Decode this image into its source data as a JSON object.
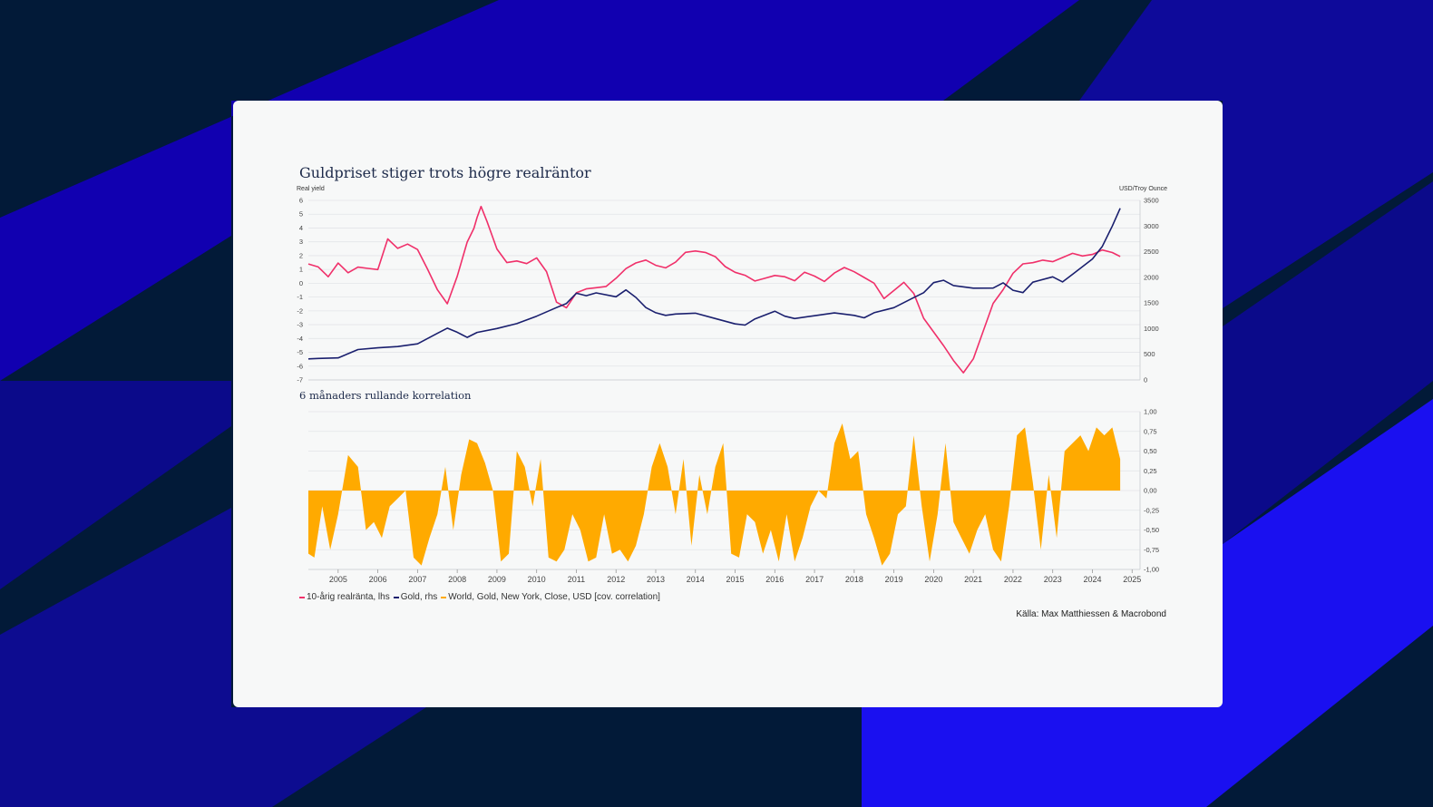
{
  "colors": {
    "background": "#021a38",
    "stripe_blue": "#1100b0",
    "stripe_bright": "#1a10f0",
    "card": "#f7f8f8",
    "real_yield": "#f0306a",
    "gold": "#1a1f6e",
    "correlation": "#ffaa00"
  },
  "chart_data": [
    {
      "type": "line",
      "title": "Guldpriset stiger trots högre realräntor",
      "ylabel_left": "Real yield",
      "ylabel_right": "USD/Troy Ounce",
      "ylim_left": [
        -7,
        6
      ],
      "ylim_right": [
        0,
        3500
      ],
      "left_ticks": [
        "6",
        "5",
        "4",
        "3",
        "2",
        "1",
        "0",
        "-1",
        "-2",
        "-3",
        "-4",
        "-5",
        "-6",
        "-7"
      ],
      "right_ticks": [
        "3500",
        "3000",
        "2500",
        "2000",
        "1500",
        "1000",
        "500",
        "0"
      ],
      "x_range": [
        2004.75,
        2025.7
      ],
      "grid": true,
      "series": [
        {
          "name": "10-årig realränta, lhs",
          "axis": "left",
          "x": [
            2004.75,
            2005.0,
            2005.25,
            2005.5,
            2005.75,
            2006.0,
            2006.25,
            2006.5,
            2006.75,
            2007.0,
            2007.25,
            2007.5,
            2007.75,
            2008.0,
            2008.25,
            2008.5,
            2008.75,
            2008.92,
            2009.0,
            2009.1,
            2009.25,
            2009.5,
            2009.75,
            2010.0,
            2010.25,
            2010.5,
            2010.75,
            2011.0,
            2011.25,
            2011.5,
            2011.75,
            2012.0,
            2012.25,
            2012.5,
            2012.75,
            2013.0,
            2013.25,
            2013.5,
            2013.75,
            2014.0,
            2014.25,
            2014.5,
            2014.75,
            2015.0,
            2015.25,
            2015.5,
            2015.75,
            2016.0,
            2016.25,
            2016.5,
            2016.75,
            2017.0,
            2017.25,
            2017.5,
            2017.75,
            2018.0,
            2018.25,
            2018.5,
            2018.75,
            2019.0,
            2019.25,
            2019.5,
            2019.75,
            2020.0,
            2020.25,
            2020.5,
            2020.75,
            2021.0,
            2021.25,
            2021.5,
            2021.75,
            2022.0,
            2022.25,
            2022.5,
            2022.75,
            2023.0,
            2023.25,
            2023.5,
            2023.75,
            2024.0,
            2024.25,
            2024.5,
            2024.75,
            2025.0,
            2025.2
          ],
          "y": [
            1.4,
            1.2,
            0.5,
            1.5,
            0.8,
            1.2,
            1.1,
            1.0,
            3.2,
            2.5,
            2.8,
            2.4,
            1.0,
            -0.5,
            -1.5,
            0.5,
            3.0,
            4.0,
            4.8,
            5.6,
            4.5,
            2.5,
            1.5,
            1.6,
            1.4,
            1.8,
            0.8,
            -1.4,
            -1.8,
            -0.7,
            -0.4,
            -0.3,
            -0.2,
            0.4,
            1.1,
            1.5,
            1.7,
            1.3,
            1.1,
            1.5,
            2.2,
            2.3,
            2.2,
            1.9,
            1.2,
            0.8,
            0.6,
            0.2,
            0.4,
            0.6,
            0.5,
            0.2,
            0.8,
            0.5,
            0.1,
            0.7,
            1.1,
            0.8,
            0.4,
            0.0,
            -1.1,
            -0.5,
            0.1,
            -0.7,
            -2.5,
            -3.5,
            -4.5,
            -5.6,
            -6.5,
            -5.5,
            -3.5,
            -1.5,
            -0.5,
            0.7,
            1.4,
            1.5,
            1.7,
            1.6,
            1.9,
            2.2,
            2.0,
            2.1,
            2.4,
            2.2,
            1.9
          ]
        },
        {
          "name": "Gold, rhs",
          "axis": "right",
          "x": [
            2004.75,
            2005.0,
            2005.5,
            2006.0,
            2006.5,
            2007.0,
            2007.5,
            2008.0,
            2008.25,
            2008.5,
            2008.75,
            2009.0,
            2009.5,
            2010.0,
            2010.5,
            2011.0,
            2011.25,
            2011.5,
            2011.75,
            2012.0,
            2012.5,
            2012.75,
            2013.0,
            2013.25,
            2013.5,
            2013.75,
            2014.0,
            2014.5,
            2015.0,
            2015.5,
            2015.75,
            2016.0,
            2016.5,
            2016.75,
            2017.0,
            2017.5,
            2018.0,
            2018.5,
            2018.75,
            2019.0,
            2019.5,
            2020.0,
            2020.25,
            2020.5,
            2020.75,
            2021.0,
            2021.5,
            2022.0,
            2022.25,
            2022.5,
            2022.75,
            2023.0,
            2023.5,
            2023.75,
            2024.0,
            2024.5,
            2024.75,
            2025.0,
            2025.2
          ],
          "y": [
            420,
            430,
            440,
            600,
            630,
            650,
            700,
            900,
            1000,
            920,
            820,
            920,
            1000,
            1100,
            1250,
            1420,
            1500,
            1700,
            1650,
            1700,
            1620,
            1750,
            1600,
            1400,
            1300,
            1250,
            1280,
            1300,
            1200,
            1100,
            1080,
            1200,
            1350,
            1250,
            1200,
            1250,
            1300,
            1250,
            1200,
            1300,
            1400,
            1600,
            1700,
            1900,
            1950,
            1850,
            1800,
            1800,
            1900,
            1750,
            1700,
            1900,
            2000,
            1900,
            2050,
            2350,
            2600,
            3000,
            3350
          ]
        }
      ]
    },
    {
      "type": "area",
      "title": "6 månaders rullande korrelation",
      "series_name": "World, Gold, New York, Close, USD [cov. correlation]",
      "ylim": [
        -1.0,
        1.0
      ],
      "right_ticks": [
        "1,00",
        "0,75",
        "0,50",
        "0,25",
        "0,00",
        "-0,25",
        "-0,50",
        "-0,75",
        "-1,00"
      ],
      "x_range": [
        2004.75,
        2025.7
      ],
      "x_ticks": [
        "2005",
        "2006",
        "2007",
        "2008",
        "2009",
        "2010",
        "2011",
        "2012",
        "2013",
        "2014",
        "2015",
        "2016",
        "2017",
        "2018",
        "2019",
        "2020",
        "2021",
        "2022",
        "2023",
        "2024",
        "2025"
      ],
      "x": [
        2004.75,
        2004.9,
        2005.1,
        2005.3,
        2005.5,
        2005.75,
        2006.0,
        2006.2,
        2006.4,
        2006.6,
        2006.8,
        2007.0,
        2007.2,
        2007.4,
        2007.6,
        2007.8,
        2008.0,
        2008.2,
        2008.4,
        2008.6,
        2008.8,
        2009.0,
        2009.2,
        2009.4,
        2009.6,
        2009.8,
        2010.0,
        2010.2,
        2010.4,
        2010.6,
        2010.8,
        2011.0,
        2011.2,
        2011.4,
        2011.6,
        2011.8,
        2012.0,
        2012.2,
        2012.4,
        2012.6,
        2012.8,
        2013.0,
        2013.2,
        2013.4,
        2013.6,
        2013.8,
        2014.0,
        2014.2,
        2014.4,
        2014.6,
        2014.8,
        2015.0,
        2015.2,
        2015.4,
        2015.6,
        2015.8,
        2016.0,
        2016.2,
        2016.4,
        2016.6,
        2016.8,
        2017.0,
        2017.2,
        2017.4,
        2017.6,
        2017.8,
        2018.0,
        2018.2,
        2018.4,
        2018.6,
        2018.8,
        2019.0,
        2019.2,
        2019.4,
        2019.6,
        2019.8,
        2020.0,
        2020.2,
        2020.4,
        2020.6,
        2020.8,
        2021.0,
        2021.2,
        2021.4,
        2021.6,
        2021.8,
        2022.0,
        2022.2,
        2022.4,
        2022.6,
        2022.8,
        2023.0,
        2023.2,
        2023.4,
        2023.6,
        2023.8,
        2024.0,
        2024.2,
        2024.4,
        2024.6,
        2024.8,
        2025.0,
        2025.2
      ],
      "y": [
        -0.8,
        -0.85,
        -0.2,
        -0.75,
        -0.3,
        0.45,
        0.3,
        -0.5,
        -0.4,
        -0.6,
        -0.2,
        -0.1,
        0.0,
        -0.85,
        -0.95,
        -0.6,
        -0.3,
        0.3,
        -0.5,
        0.2,
        0.65,
        0.6,
        0.35,
        0.0,
        -0.9,
        -0.8,
        0.5,
        0.3,
        -0.2,
        0.4,
        -0.85,
        -0.9,
        -0.75,
        -0.3,
        -0.5,
        -0.9,
        -0.85,
        -0.3,
        -0.8,
        -0.75,
        -0.9,
        -0.7,
        -0.3,
        0.3,
        0.6,
        0.3,
        -0.3,
        0.4,
        -0.7,
        0.2,
        -0.3,
        0.3,
        0.6,
        -0.8,
        -0.85,
        -0.3,
        -0.4,
        -0.8,
        -0.5,
        -0.9,
        -0.3,
        -0.9,
        -0.6,
        -0.2,
        0.0,
        -0.1,
        0.6,
        0.85,
        0.4,
        0.5,
        -0.3,
        -0.6,
        -0.95,
        -0.8,
        -0.3,
        -0.2,
        0.7,
        -0.2,
        -0.9,
        -0.3,
        0.6,
        -0.4,
        -0.6,
        -0.8,
        -0.5,
        -0.3,
        -0.75,
        -0.9,
        -0.2,
        0.7,
        0.8,
        0.1,
        -0.75,
        0.2,
        -0.6,
        0.5,
        0.6,
        0.7,
        0.5,
        0.8,
        0.7,
        0.8,
        0.4
      ]
    }
  ],
  "legend": {
    "real_yield": "10-årig realränta, lhs",
    "gold": "Gold, rhs",
    "correlation": "World, Gold, New York, Close, USD [cov. correlation]"
  },
  "source": "Källa: Max Matthiessen & Macrobond"
}
